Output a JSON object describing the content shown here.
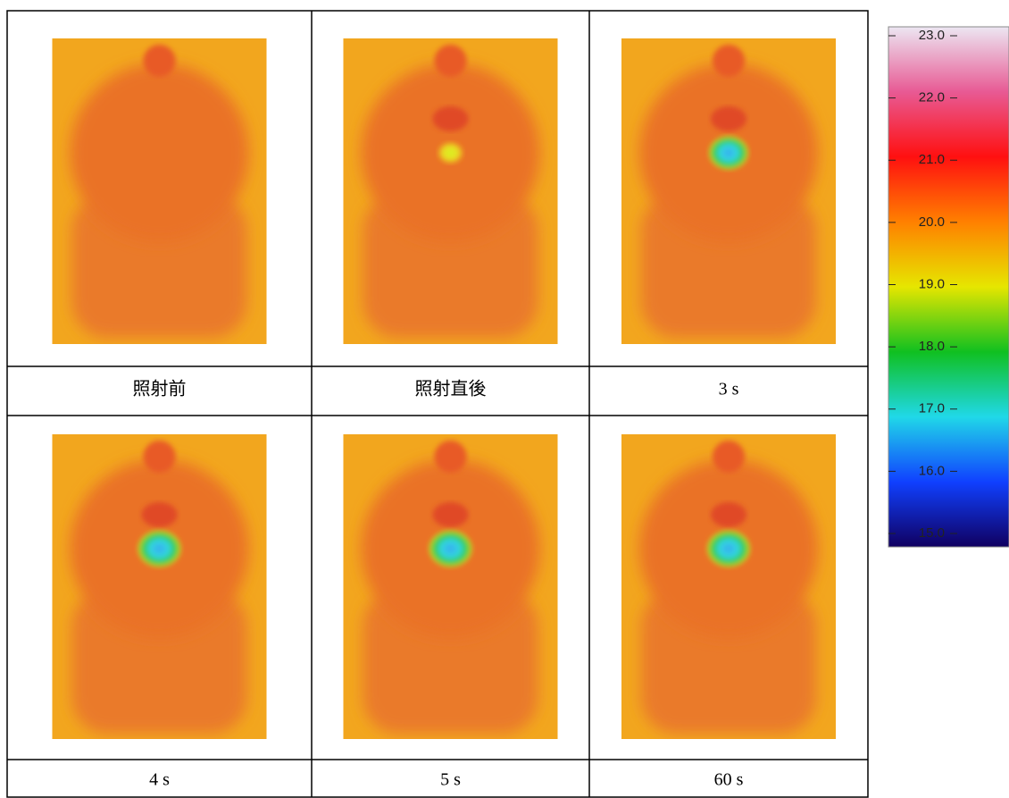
{
  "panels": [
    {
      "label": "照射前"
    },
    {
      "label": "照射直後"
    },
    {
      "label": "3 s"
    },
    {
      "label": "4 s"
    },
    {
      "label": "5 s"
    },
    {
      "label": "60 s"
    }
  ],
  "colorbar": {
    "ylim": [
      15,
      23
    ],
    "ticks": [
      {
        "value": 23,
        "label": "23.0"
      },
      {
        "value": 22,
        "label": "22.0"
      },
      {
        "value": 21,
        "label": "21.0"
      },
      {
        "value": 20,
        "label": "20.0"
      },
      {
        "value": 19,
        "label": "19.0"
      },
      {
        "value": 18,
        "label": "18.0"
      },
      {
        "value": 17,
        "label": "17.0"
      },
      {
        "value": 16,
        "label": "16.0"
      },
      {
        "value": 15,
        "label": "15.0"
      }
    ]
  }
}
